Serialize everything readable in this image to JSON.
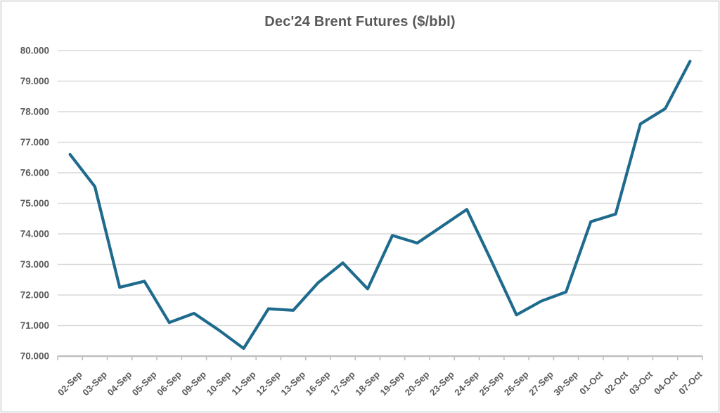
{
  "chart_data": {
    "type": "line",
    "title": "Dec'24 Brent Futures ($/bbl)",
    "categories": [
      "02-Sep",
      "03-Sep",
      "04-Sep",
      "05-Sep",
      "06-Sep",
      "09-Sep",
      "10-Sep",
      "11-Sep",
      "12-Sep",
      "13-Sep",
      "16-Sep",
      "17-Sep",
      "18-Sep",
      "19-Sep",
      "20-Sep",
      "23-Sep",
      "24-Sep",
      "25-Sep",
      "26-Sep",
      "27-Sep",
      "30-Sep",
      "01-Oct",
      "02-Oct",
      "03-Oct",
      "04-Oct",
      "07-Oct"
    ],
    "values": [
      76.6,
      75.55,
      72.25,
      72.45,
      71.1,
      71.4,
      70.85,
      70.25,
      71.55,
      71.5,
      72.4,
      73.05,
      72.2,
      73.95,
      73.7,
      74.25,
      74.8,
      73.1,
      71.35,
      71.8,
      72.1,
      74.4,
      74.65,
      77.6,
      78.1,
      79.65
    ],
    "xlabel": "",
    "ylabel": "",
    "ylim": [
      70,
      80
    ],
    "ytick_step": 1,
    "y_tick_labels": [
      "70.000",
      "71.000",
      "72.000",
      "73.000",
      "74.000",
      "75.000",
      "76.000",
      "77.000",
      "78.000",
      "79.000",
      "80.000"
    ],
    "grid": true,
    "legend": false
  },
  "colors": {
    "line": "#1f6b8e",
    "gridline": "#d9d9d9",
    "axis_line": "#bfbfbf",
    "tick": "#bfbfbf",
    "text": "#595959",
    "border": "#d9d9d9",
    "background": "#ffffff"
  }
}
